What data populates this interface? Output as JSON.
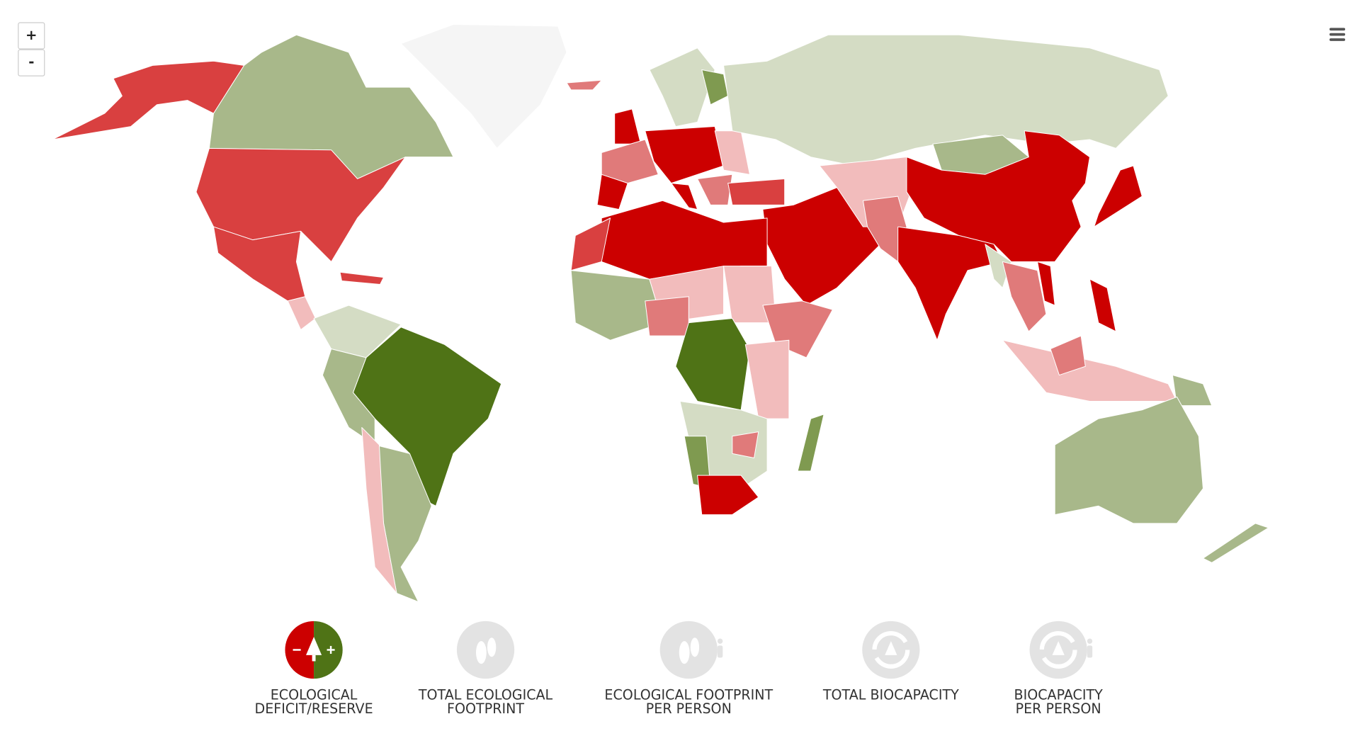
{
  "zoom": {
    "in": "+",
    "out": "-"
  },
  "tabs": [
    {
      "lines": [
        "ECOLOGICAL",
        "DEFICIT/RESERVE"
      ]
    },
    {
      "lines": [
        "TOTAL ECOLOGICAL",
        "FOOTPRINT"
      ]
    },
    {
      "lines": [
        "ECOLOGICAL FOOTPRINT",
        "PER PERSON"
      ]
    },
    {
      "lines": [
        "TOTAL BIOCAPACITY"
      ]
    },
    {
      "lines": [
        "BIOCAPACITY",
        "PER PERSON"
      ]
    }
  ]
}
